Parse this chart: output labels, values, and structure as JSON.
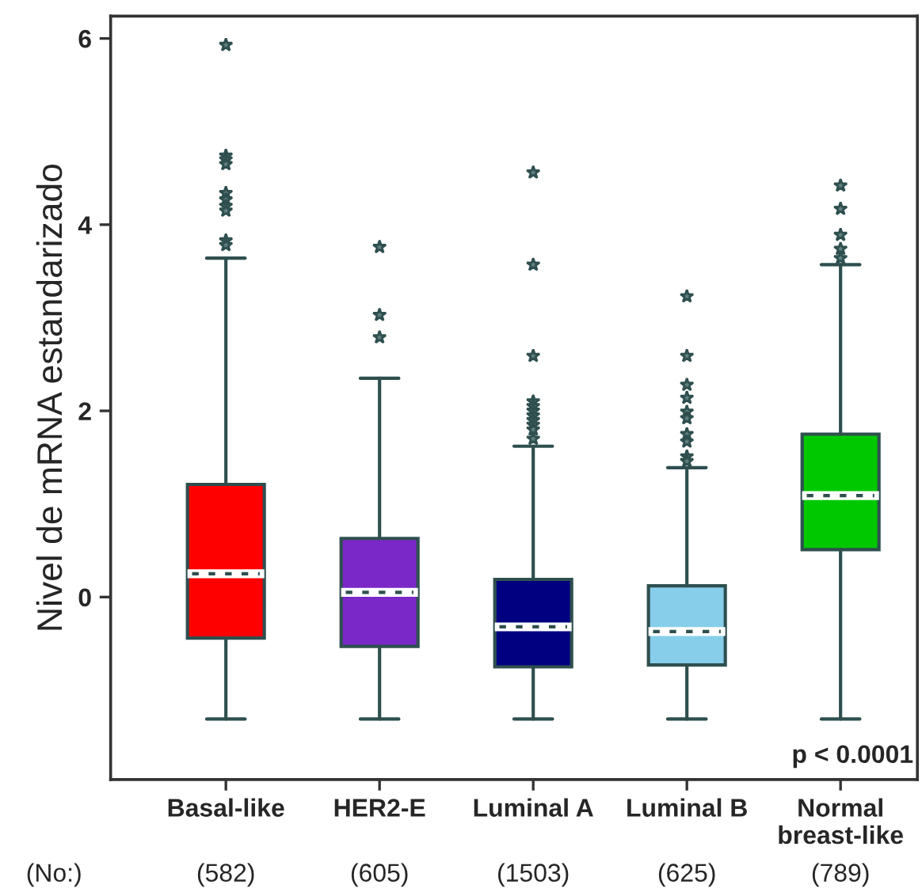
{
  "chart_data": {
    "type": "box",
    "ylabel": "Nivel de mRNA estandarizado",
    "categories": [
      "Basal-like",
      "HER2-E",
      "Luminal A",
      "Luminal B",
      "Normal\nbreast-like"
    ],
    "colors": [
      "#ff0000",
      "#7b28c8",
      "#000080",
      "#87ceeb",
      "#00c800"
    ],
    "boxes": [
      {
        "low": -1.31,
        "q1": -0.44,
        "median": 0.25,
        "q3": 1.21,
        "high": 3.64,
        "outliers": [
          5.93,
          4.74,
          4.7,
          4.65,
          4.34,
          4.27,
          4.2,
          4.15,
          3.83,
          3.78
        ]
      },
      {
        "low": -1.31,
        "q1": -0.53,
        "median": 0.05,
        "q3": 0.63,
        "high": 2.35,
        "outliers": [
          3.76,
          3.03,
          2.79
        ]
      },
      {
        "low": -1.31,
        "q1": -0.75,
        "median": -0.32,
        "q3": 0.19,
        "high": 1.62,
        "outliers": [
          4.56,
          3.57,
          2.59,
          2.1,
          2.05,
          2.0,
          1.95,
          1.9,
          1.85,
          1.8,
          1.7
        ]
      },
      {
        "low": -1.31,
        "q1": -0.73,
        "median": -0.37,
        "q3": 0.12,
        "high": 1.39,
        "outliers": [
          3.23,
          2.59,
          2.28,
          2.14,
          1.99,
          1.92,
          1.75,
          1.67,
          1.51,
          1.46
        ]
      },
      {
        "low": -1.31,
        "q1": 0.51,
        "median": 1.09,
        "q3": 1.75,
        "high": 3.57,
        "outliers": [
          4.42,
          4.17,
          3.89,
          3.74,
          3.64
        ]
      }
    ],
    "ylim": [
      -1.96,
      6.24
    ],
    "yticks": [
      0,
      2,
      4,
      6
    ],
    "grid": false,
    "marker": "star",
    "annotations": [
      "p < 0.0001",
      "(No:)",
      "(582)",
      "(605)",
      "(1503)",
      "(625)",
      "(789)"
    ]
  }
}
